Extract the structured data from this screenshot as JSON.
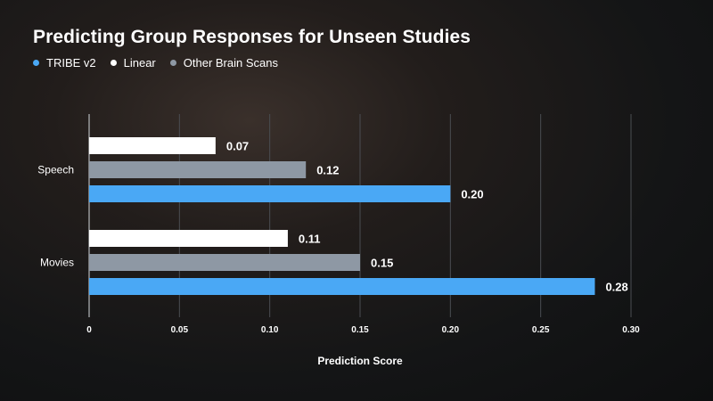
{
  "chart_data": {
    "type": "bar",
    "orientation": "horizontal",
    "title": "Predicting Group Responses for Unseen Studies",
    "xlabel": "Prediction Score",
    "ylabel": "",
    "xlim": [
      0,
      0.3
    ],
    "x_ticks": [
      "0",
      "0.05",
      "0.10",
      "0.15",
      "0.20",
      "0.25",
      "0.30"
    ],
    "grid": true,
    "legend_position": "top-left",
    "categories": [
      "Speech",
      "Movies"
    ],
    "series": [
      {
        "name": "Linear",
        "color": "#ffffff",
        "values": [
          0.07,
          0.11
        ],
        "labels": [
          "0.07",
          "0.11"
        ]
      },
      {
        "name": "Other Brain Scans",
        "color": "#8e98a4",
        "values": [
          0.12,
          0.15
        ],
        "labels": [
          "0.12",
          "0.15"
        ]
      },
      {
        "name": "TRIBE v2",
        "color": "#4aa8f5",
        "values": [
          0.2,
          0.28
        ],
        "labels": [
          "0.20",
          "0.28"
        ]
      }
    ],
    "legend": [
      {
        "name": "TRIBE v2",
        "color": "#4aa8f5"
      },
      {
        "name": "Linear",
        "color": "#ffffff"
      },
      {
        "name": "Other Brain Scans",
        "color": "#8e98a4"
      }
    ]
  }
}
